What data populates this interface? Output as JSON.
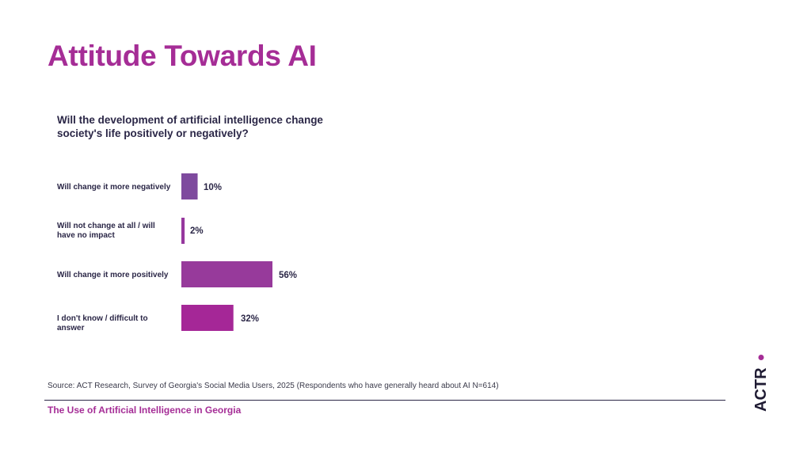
{
  "title": "Attitude Towards AI",
  "question": "Will the development of artificial intelligence change society's life positively or negatively?",
  "chart_data": {
    "type": "bar",
    "orientation": "horizontal",
    "title": "Will the development of artificial intelligence change society's life positively or negatively?",
    "categories": [
      "Will change it more negatively",
      "Will not change at all / will have no impact",
      "Will change it more positively",
      "I don't know / difficult to answer"
    ],
    "values": [
      10,
      2,
      56,
      32
    ],
    "value_labels": [
      "10%",
      "2%",
      "56%",
      "32%"
    ],
    "unit": "%",
    "xlim": [
      0,
      100
    ],
    "grid": false,
    "colors": [
      "#7e4a9e",
      "#96389e",
      "#973a9b",
      "#a52797"
    ]
  },
  "source": "Source: ACT Research, Survey of Georgia's Social Media Users, 2025 (Respondents who have generally heard about AI N=614)",
  "footer": "The Use of Artificial Intelligence in Georgia",
  "logo_text": "ACT R.",
  "colors": {
    "accent": "#a52d96",
    "text": "#2b2747"
  }
}
